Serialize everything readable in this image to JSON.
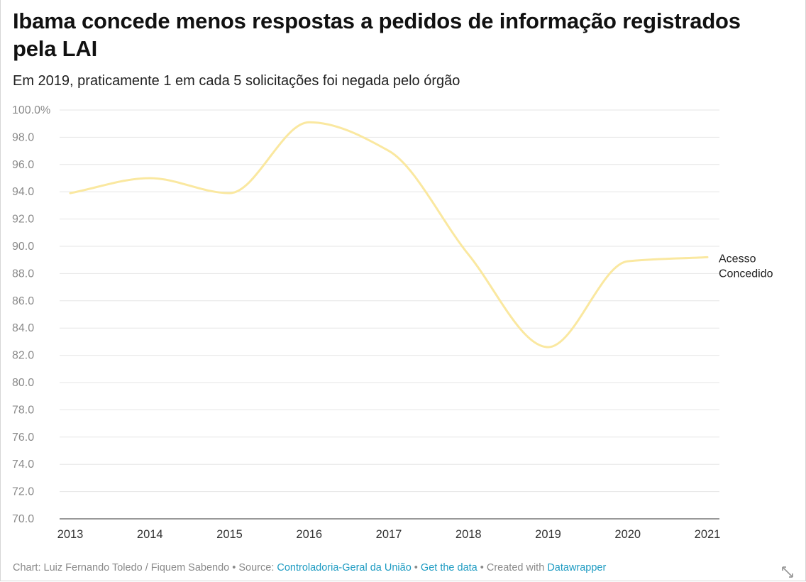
{
  "header": {
    "title": "Ibama concede menos respostas a pedidos de informação registrados pela LAI",
    "subtitle": "Em 2019, praticamente 1 em cada 5 solicitações foi negada pelo órgão"
  },
  "chart_data": {
    "type": "line",
    "title": "Ibama concede menos respostas a pedidos de informação registrados pela LAI",
    "subtitle": "Em 2019, praticamente 1 em cada 5 solicitações foi negada pelo órgão",
    "xlabel": "",
    "ylabel": "",
    "x": [
      2013,
      2014,
      2015,
      2016,
      2017,
      2018,
      2019,
      2020,
      2021
    ],
    "x_tick_labels": [
      "2013",
      "2014",
      "2015",
      "2016",
      "2017",
      "2018",
      "2019",
      "2020",
      "2021"
    ],
    "y_tick_labels": [
      "100.0%",
      "98.0",
      "96.0",
      "94.0",
      "92.0",
      "90.0",
      "88.0",
      "86.0",
      "84.0",
      "82.0",
      "80.0",
      "78.0",
      "76.0",
      "74.0",
      "72.0",
      "70.0"
    ],
    "y_ticks": [
      100,
      98,
      96,
      94,
      92,
      90,
      88,
      86,
      84,
      82,
      80,
      78,
      76,
      74,
      72,
      70
    ],
    "ylim": [
      70,
      100
    ],
    "grid": true,
    "curve": "smooth",
    "series": [
      {
        "name": "Acesso Concedido",
        "label_lines": [
          "Acesso",
          "Concedido"
        ],
        "color": "#fae8a0",
        "values": [
          93.9,
          95.0,
          93.9,
          99.1,
          97.0,
          89.4,
          82.6,
          88.9,
          89.2
        ]
      }
    ]
  },
  "footer": {
    "prefix": "Chart: Luiz Fernando Toledo / Fiquem Sabendo",
    "sep1": " • ",
    "source_label": "Source: ",
    "source_link": "Controladoria-Geral da União",
    "sep2": " • ",
    "get_data": "Get the data",
    "sep3": " • ",
    "created_with": "Created with ",
    "datawrapper": "Datawrapper"
  },
  "icons": {
    "expand": "expand-icon"
  },
  "colors": {
    "line": "#fae8a0",
    "grid": "#e6e6e6",
    "link": "#1d9bc2",
    "muted_text": "#8a8a8a"
  }
}
